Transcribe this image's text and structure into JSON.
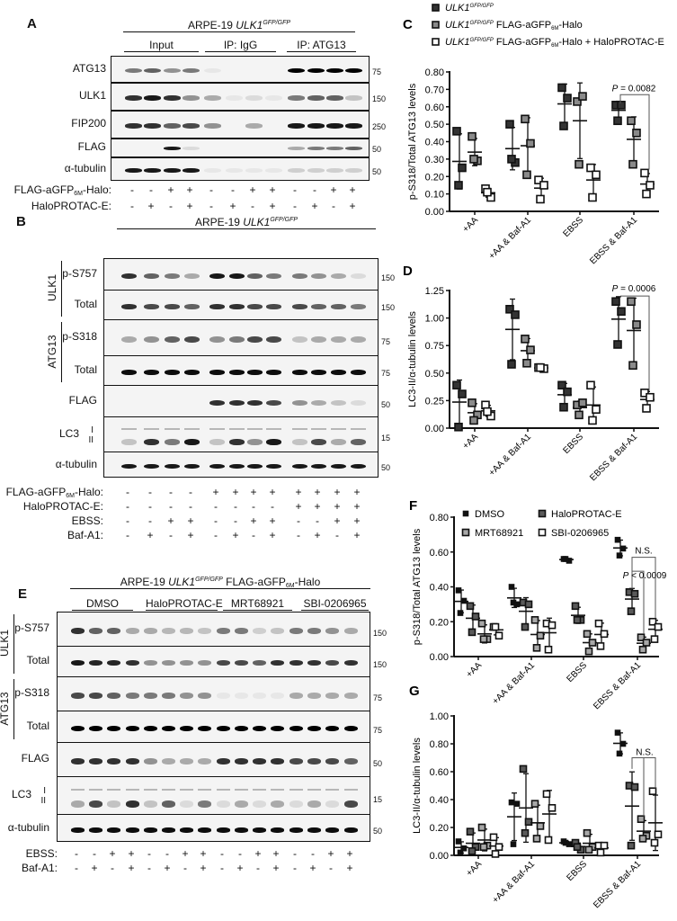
{
  "panels": {
    "A": {
      "letter": "A",
      "header": {
        "cell": "ARPE-19 ",
        "gene": "ULK1",
        "genotype": "GFP/GFP"
      },
      "groups": [
        "Input",
        "IP: IgG",
        "IP: ATG13"
      ],
      "rows": [
        {
          "label": "ATG13",
          "mw": "75",
          "bands": [
            0.5,
            0.6,
            0.4,
            0.5,
            0.05,
            0,
            0,
            0,
            1,
            1,
            1,
            1
          ]
        },
        {
          "label": "ULK1",
          "mw": "150",
          "bands": [
            0.8,
            0.9,
            0.8,
            0.4,
            0.3,
            0.05,
            0.1,
            0.05,
            0.5,
            0.6,
            0.6,
            0.2
          ]
        },
        {
          "label": "FIP200",
          "mw": "250",
          "bands": [
            0.8,
            0.8,
            0.6,
            0.7,
            0.4,
            0,
            0.3,
            0,
            0.9,
            0.9,
            0.9,
            0.9
          ]
        },
        {
          "label": "FLAG",
          "mw": "50",
          "bands": [
            0,
            0,
            0.9,
            0.1,
            0,
            0,
            0,
            0,
            0.3,
            0.5,
            0.5,
            0.6
          ]
        },
        {
          "label": "α-tubulin",
          "mw": "50",
          "bands": [
            0.9,
            0.9,
            0.9,
            0.9,
            0.05,
            0.05,
            0.05,
            0.05,
            0.15,
            0.15,
            0.15,
            0.15
          ]
        }
      ],
      "conditions": [
        {
          "label": "FLAG-aGFP",
          "sub": "6M",
          "suffix": "-Halo:",
          "signs": [
            "-",
            "-",
            "+",
            "+",
            "-",
            "-",
            "+",
            "+",
            "-",
            "-",
            "+",
            "+"
          ]
        },
        {
          "label": "HaloPROTAC-E:",
          "sub": "",
          "suffix": "",
          "signs": [
            "-",
            "+",
            "-",
            "+",
            "-",
            "+",
            "-",
            "+",
            "-",
            "+",
            "-",
            "+"
          ]
        }
      ]
    },
    "B": {
      "letter": "B",
      "header": {
        "cell": "ARPE-19 ",
        "gene": "ULK1",
        "genotype": "GFP/GFP"
      },
      "group_labels": [
        "ULK1",
        "ATG13"
      ],
      "rows": [
        {
          "label": "p-S757",
          "mw": "150",
          "bands": [
            0.8,
            0.6,
            0.5,
            0.3,
            0.9,
            0.9,
            0.6,
            0.5,
            0.5,
            0.4,
            0.3,
            0.1
          ]
        },
        {
          "label": "Total",
          "mw": "150",
          "bands": [
            0.8,
            0.7,
            0.7,
            0.6,
            0.8,
            0.8,
            0.7,
            0.7,
            0.7,
            0.6,
            0.6,
            0.5
          ]
        },
        {
          "label": "p-S318",
          "mw": "75",
          "bands": [
            0.3,
            0.4,
            0.6,
            0.7,
            0.4,
            0.5,
            0.7,
            0.7,
            0.2,
            0.3,
            0.3,
            0.3
          ]
        },
        {
          "label": "Total",
          "mw": "75",
          "bands": [
            0.95,
            0.95,
            0.95,
            0.95,
            0.95,
            0.95,
            0.95,
            0.95,
            0.95,
            0.95,
            0.95,
            0.95
          ]
        },
        {
          "label": "FLAG",
          "mw": "50",
          "bands": [
            0,
            0,
            0,
            0,
            0.8,
            0.8,
            0.8,
            0.7,
            0.4,
            0.3,
            0.2,
            0.1
          ]
        },
        {
          "label": "LC3",
          "sublabels": [
            "I",
            "II"
          ],
          "mw": "15",
          "bands": [
            0.2,
            0.8,
            0.5,
            0.9,
            0.2,
            0.8,
            0.4,
            0.9,
            0.2,
            0.7,
            0.3,
            0.6
          ]
        },
        {
          "label": "α-tubulin",
          "mw": "50",
          "bands": [
            0.9,
            0.9,
            0.9,
            0.9,
            0.9,
            0.9,
            0.9,
            0.9,
            0.9,
            0.9,
            0.9,
            0.9
          ]
        }
      ],
      "conditions": [
        {
          "label": "FLAG-aGFP",
          "sub": "6M",
          "suffix": "-Halo:",
          "signs": [
            "-",
            "-",
            "-",
            "-",
            "+",
            "+",
            "+",
            "+",
            "+",
            "+",
            "+",
            "+"
          ]
        },
        {
          "label": "HaloPROTAC-E:",
          "sub": "",
          "suffix": "",
          "signs": [
            "-",
            "-",
            "-",
            "-",
            "-",
            "-",
            "-",
            "-",
            "+",
            "+",
            "+",
            "+"
          ]
        },
        {
          "label": "EBSS:",
          "sub": "",
          "suffix": "",
          "signs": [
            "-",
            "-",
            "+",
            "+",
            "-",
            "-",
            "+",
            "+",
            "-",
            "-",
            "+",
            "+"
          ]
        },
        {
          "label": "Baf-A1:",
          "sub": "",
          "suffix": "",
          "signs": [
            "-",
            "+",
            "-",
            "+",
            "-",
            "+",
            "-",
            "+",
            "-",
            "+",
            "-",
            "+"
          ]
        }
      ]
    },
    "E": {
      "letter": "E",
      "header": {
        "cell": "ARPE-19 ",
        "gene": "ULK1",
        "genotype": "GFP/GFP",
        "construct": " FLAG-aGFP",
        "sub": "6M",
        "suffix": "-Halo"
      },
      "groups": [
        "DMSO",
        "HaloPROTAC-E",
        "MRT68921",
        "SBI-0206965"
      ],
      "group_labels": [
        "ULK1",
        "ATG13"
      ],
      "rows": [
        {
          "label": "p-S757",
          "mw": "150",
          "bands": [
            0.8,
            0.6,
            0.6,
            0.3,
            0.3,
            0.25,
            0.25,
            0.2,
            0.5,
            0.5,
            0.15,
            0.2,
            0.5,
            0.5,
            0.4,
            0.3
          ]
        },
        {
          "label": "Total",
          "mw": "150",
          "bands": [
            0.9,
            0.85,
            0.85,
            0.8,
            0.4,
            0.4,
            0.4,
            0.4,
            0.7,
            0.7,
            0.6,
            0.8,
            0.8,
            0.8,
            0.7,
            0.8
          ]
        },
        {
          "label": "p-S318",
          "mw": "75",
          "bands": [
            0.7,
            0.7,
            0.6,
            0.5,
            0.5,
            0.5,
            0.4,
            0.4,
            0.05,
            0.05,
            0.05,
            0.05,
            0.3,
            0.3,
            0.3,
            0.3
          ]
        },
        {
          "label": "Total",
          "mw": "75",
          "bands": [
            1,
            1,
            1,
            1,
            1,
            1,
            1,
            1,
            1,
            1,
            1,
            1,
            1,
            1,
            1,
            1
          ]
        },
        {
          "label": "FLAG",
          "mw": "50",
          "bands": [
            0.8,
            0.8,
            0.8,
            0.8,
            0.4,
            0.3,
            0.3,
            0.3,
            0.8,
            0.8,
            0.8,
            0.8,
            0.7,
            0.7,
            0.7,
            0.6
          ]
        },
        {
          "label": "LC3",
          "sublabels": [
            "I",
            "II"
          ],
          "mw": "15",
          "bands": [
            0.3,
            0.7,
            0.2,
            0.8,
            0.2,
            0.6,
            0.1,
            0.5,
            0.1,
            0.3,
            0.1,
            0.3,
            0.1,
            0.3,
            0.1,
            0.7
          ]
        },
        {
          "label": "α-tubulin",
          "mw": "50",
          "bands": [
            0.95,
            0.95,
            0.95,
            0.95,
            0.95,
            0.95,
            0.95,
            0.95,
            0.95,
            0.95,
            0.95,
            0.95,
            0.95,
            0.95,
            0.95,
            0.95
          ]
        }
      ],
      "conditions": [
        {
          "label": "EBSS:",
          "signs": [
            "-",
            "-",
            "+",
            "+",
            "-",
            "-",
            "+",
            "+",
            "-",
            "-",
            "+",
            "+",
            "-",
            "-",
            "+",
            "+"
          ]
        },
        {
          "label": "Baf-A1:",
          "signs": [
            "-",
            "+",
            "-",
            "+",
            "-",
            "+",
            "-",
            "+",
            "-",
            "+",
            "-",
            "+",
            "-",
            "+",
            "-",
            "+"
          ]
        }
      ]
    }
  },
  "chart_data": [
    {
      "panel": "C",
      "type": "scatter",
      "ylabel": "p-S318/Total ATG13 levels",
      "ylim": [
        0,
        0.8
      ],
      "yticks": [
        "0.00",
        "0.10",
        "0.20",
        "0.30",
        "0.40",
        "0.50",
        "0.60",
        "0.70",
        "0.80"
      ],
      "categories": [
        "+AA",
        "+AA & Baf-A1",
        "EBSS",
        "EBSS & Baf-A1"
      ],
      "legend": [
        {
          "gene": "ULK1",
          "genotype": "GFP/GFP",
          "text": ""
        },
        {
          "gene": "ULK1",
          "genotype": "GFP/GFP",
          "text": " FLAG-aGFP",
          "sub": "6M",
          "suffix": "-Halo"
        },
        {
          "gene": "ULK1",
          "genotype": "GFP/GFP",
          "text": " FLAG-aGFP",
          "sub": "6M",
          "suffix": "-Halo + HaloPROTAC-E"
        }
      ],
      "series": [
        {
          "color": "#333333",
          "values": [
            [
              0.46,
              0.25,
              0.15
            ],
            [
              0.5,
              0.28,
              0.3
            ],
            [
              0.71,
              0.65,
              0.49
            ],
            [
              0.61,
              0.61,
              0.52
            ]
          ]
        },
        {
          "color": "#8a8a8a",
          "values": [
            [
              0.43,
              0.29,
              0.3
            ],
            [
              0.53,
              0.39,
              0.21
            ],
            [
              0.63,
              0.66,
              0.27
            ],
            [
              0.52,
              0.45,
              0.27
            ]
          ]
        },
        {
          "color": "#ffffff",
          "values": [
            [
              0.13,
              0.08,
              0.11
            ],
            [
              0.18,
              0.15,
              0.07
            ],
            [
              0.25,
              0.21,
              0.08
            ],
            [
              0.22,
              0.15,
              0.1
            ]
          ]
        }
      ],
      "annotations": [
        {
          "italic": "P",
          "text": " = 0.0082"
        }
      ]
    },
    {
      "panel": "D",
      "type": "scatter",
      "ylabel": "LC3-II/α-tubulin levels",
      "ylim": [
        0,
        1.25
      ],
      "yticks": [
        "0.00",
        "0.25",
        "0.50",
        "0.75",
        "1.00",
        "1.25"
      ],
      "categories": [
        "+AA",
        "+AA & Baf-A1",
        "EBSS",
        "EBSS & Baf-A1"
      ],
      "series": [
        {
          "color": "#333333",
          "values": [
            [
              0.39,
              0.31,
              0.01
            ],
            [
              1.08,
              1.03,
              0.58
            ],
            [
              0.39,
              0.33,
              0.19
            ],
            [
              1.15,
              1.06,
              0.76
            ]
          ]
        },
        {
          "color": "#8a8a8a",
          "values": [
            [
              0.23,
              0.12,
              0.07
            ],
            [
              0.81,
              0.71,
              0.59
            ],
            [
              0.21,
              0.23,
              0.12
            ],
            [
              1.15,
              0.94,
              0.57
            ]
          ]
        },
        {
          "color": "#ffffff",
          "values": [
            [
              0.21,
              0.11,
              0.15
            ],
            [
              0.55,
              0.54,
              0.55
            ],
            [
              0.39,
              0.17,
              0.07
            ],
            [
              0.32,
              0.28,
              0.18
            ]
          ]
        }
      ],
      "annotations": [
        {
          "italic": "P",
          "text": " = 0.0006"
        }
      ]
    },
    {
      "panel": "F",
      "type": "scatter",
      "ylabel": "p-S318/Total ATG13 levels",
      "ylim": [
        0,
        0.8
      ],
      "yticks": [
        "0.00",
        "0.20",
        "0.40",
        "0.60",
        "0.80"
      ],
      "categories": [
        "+AA",
        "+AA & Baf-A1",
        "EBSS",
        "EBSS & Baf-A1"
      ],
      "series": [
        {
          "name": "DMSO",
          "color": "#111111",
          "values": [
            [
              0.38,
              0.32,
              0.25
            ],
            [
              0.4,
              0.3,
              0.31
            ],
            [
              0.56,
              0.55,
              0.56
            ],
            [
              0.67,
              0.62,
              0.58
            ]
          ]
        },
        {
          "name": "HaloPROTAC-E",
          "color": "#5a5a5a",
          "values": [
            [
              0.29,
              0.23,
              0.14
            ],
            [
              0.31,
              0.3,
              0.17
            ],
            [
              0.29,
              0.21,
              0.21
            ],
            [
              0.37,
              0.36,
              0.26
            ]
          ]
        },
        {
          "name": "MRT68921",
          "color": "#a8a8a8",
          "values": [
            [
              0.19,
              0.1,
              0.1
            ],
            [
              0.21,
              0.12,
              0.05
            ],
            [
              0.13,
              0.08,
              0.03
            ],
            [
              0.11,
              0.08,
              0.04
            ]
          ]
        },
        {
          "name": "SBI-0206965",
          "color": "#ffffff",
          "values": [
            [
              0.17,
              0.12,
              0.17
            ],
            [
              0.19,
              0.18,
              0.04
            ],
            [
              0.19,
              0.13,
              0.06
            ],
            [
              0.2,
              0.17,
              0.1
            ]
          ]
        }
      ],
      "annotations": [
        {
          "italic": "",
          "text": "N.S."
        },
        {
          "italic": "P",
          "text": " < 0.0009"
        }
      ]
    },
    {
      "panel": "G",
      "type": "scatter",
      "ylabel": "LC3-II/α-tubulin levels",
      "ylim": [
        0,
        1.0
      ],
      "yticks": [
        "0.00",
        "0.20",
        "0.40",
        "0.60",
        "0.80",
        "1.00"
      ],
      "categories": [
        "+AA",
        "+AA & Baf-A1",
        "EBSS",
        "EBSS & Baf-A1"
      ],
      "series": [
        {
          "name": "DMSO",
          "color": "#111111",
          "values": [
            [
              0.1,
              0.05,
              0.02
            ],
            [
              0.38,
              0.37,
              0.08
            ],
            [
              0.1,
              0.08,
              0.09
            ],
            [
              0.88,
              0.8,
              0.73
            ]
          ]
        },
        {
          "name": "HaloPROTAC-E",
          "color": "#5a5a5a",
          "values": [
            [
              0.17,
              0.06,
              0.03
            ],
            [
              0.62,
              0.24,
              0.16
            ],
            [
              0.09,
              0.04,
              0.06
            ],
            [
              0.5,
              0.49,
              0.07
            ]
          ]
        },
        {
          "name": "MRT68921",
          "color": "#a8a8a8",
          "values": [
            [
              0.2,
              0.07,
              0.06
            ],
            [
              0.37,
              0.21,
              0.12
            ],
            [
              0.16,
              0.06,
              0.04
            ],
            [
              0.26,
              0.14,
              0.12
            ]
          ]
        },
        {
          "name": "SBI-0206965",
          "color": "#ffffff",
          "values": [
            [
              0.13,
              0.06,
              0.01
            ],
            [
              0.44,
              0.34,
              0.11
            ],
            [
              0.07,
              0.07,
              0.02
            ],
            [
              0.46,
              0.15,
              0.09
            ]
          ]
        }
      ],
      "annotations": [
        {
          "italic": "",
          "text": "N.S."
        }
      ]
    }
  ]
}
